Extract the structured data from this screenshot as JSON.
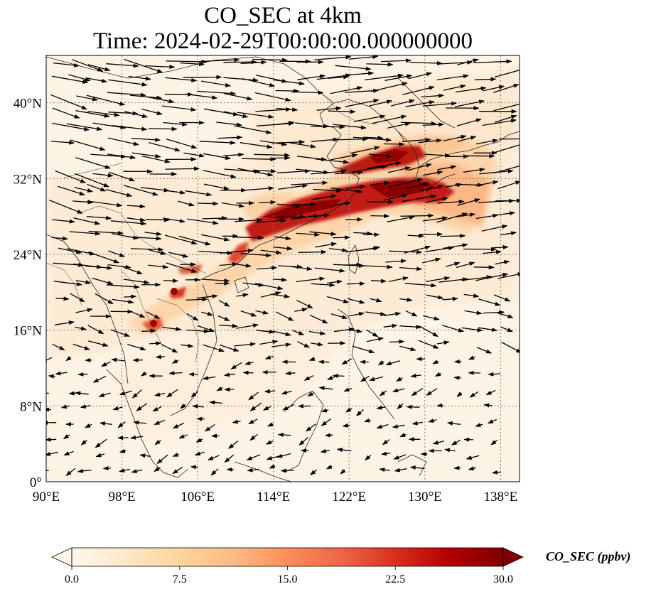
{
  "title": {
    "line1": "CO_SEC at 4km",
    "line2": "Time: 2024-02-29T00:00:00.000000000"
  },
  "map": {
    "lon_range": [
      90,
      140
    ],
    "lat_range": [
      0,
      45
    ],
    "lon_ticks": [
      {
        "value": 90,
        "label": "90°E"
      },
      {
        "value": 98,
        "label": "98°E"
      },
      {
        "value": 106,
        "label": "106°E"
      },
      {
        "value": 114,
        "label": "114°E"
      },
      {
        "value": 122,
        "label": "122°E"
      },
      {
        "value": 130,
        "label": "130°E"
      },
      {
        "value": 138,
        "label": "138°E"
      }
    ],
    "lat_ticks": [
      {
        "value": 0,
        "label": "0°"
      },
      {
        "value": 8,
        "label": "8°N"
      },
      {
        "value": 16,
        "label": "16°N"
      },
      {
        "value": 24,
        "label": "24°N"
      },
      {
        "value": 32,
        "label": "32°N"
      },
      {
        "value": 40,
        "label": "40°N"
      }
    ],
    "gridlines": "dotted",
    "wind_vectors": true,
    "plume_max_ppbv": 30
  },
  "colorbar": {
    "label": "CO_SEC (ppbv)",
    "min": 0,
    "max": 30,
    "extend": "both",
    "ticks": [
      {
        "value": 0,
        "label": "0.0"
      },
      {
        "value": 7.5,
        "label": "7.5"
      },
      {
        "value": 15,
        "label": "15.0"
      },
      {
        "value": 22.5,
        "label": "22.5"
      },
      {
        "value": 30,
        "label": "30.0"
      }
    ],
    "colors": [
      "#fff7ec",
      "#fee8c8",
      "#fdd49e",
      "#fdbb84",
      "#fc8d59",
      "#ef6548",
      "#d7301f",
      "#b30000",
      "#7f0000"
    ]
  }
}
